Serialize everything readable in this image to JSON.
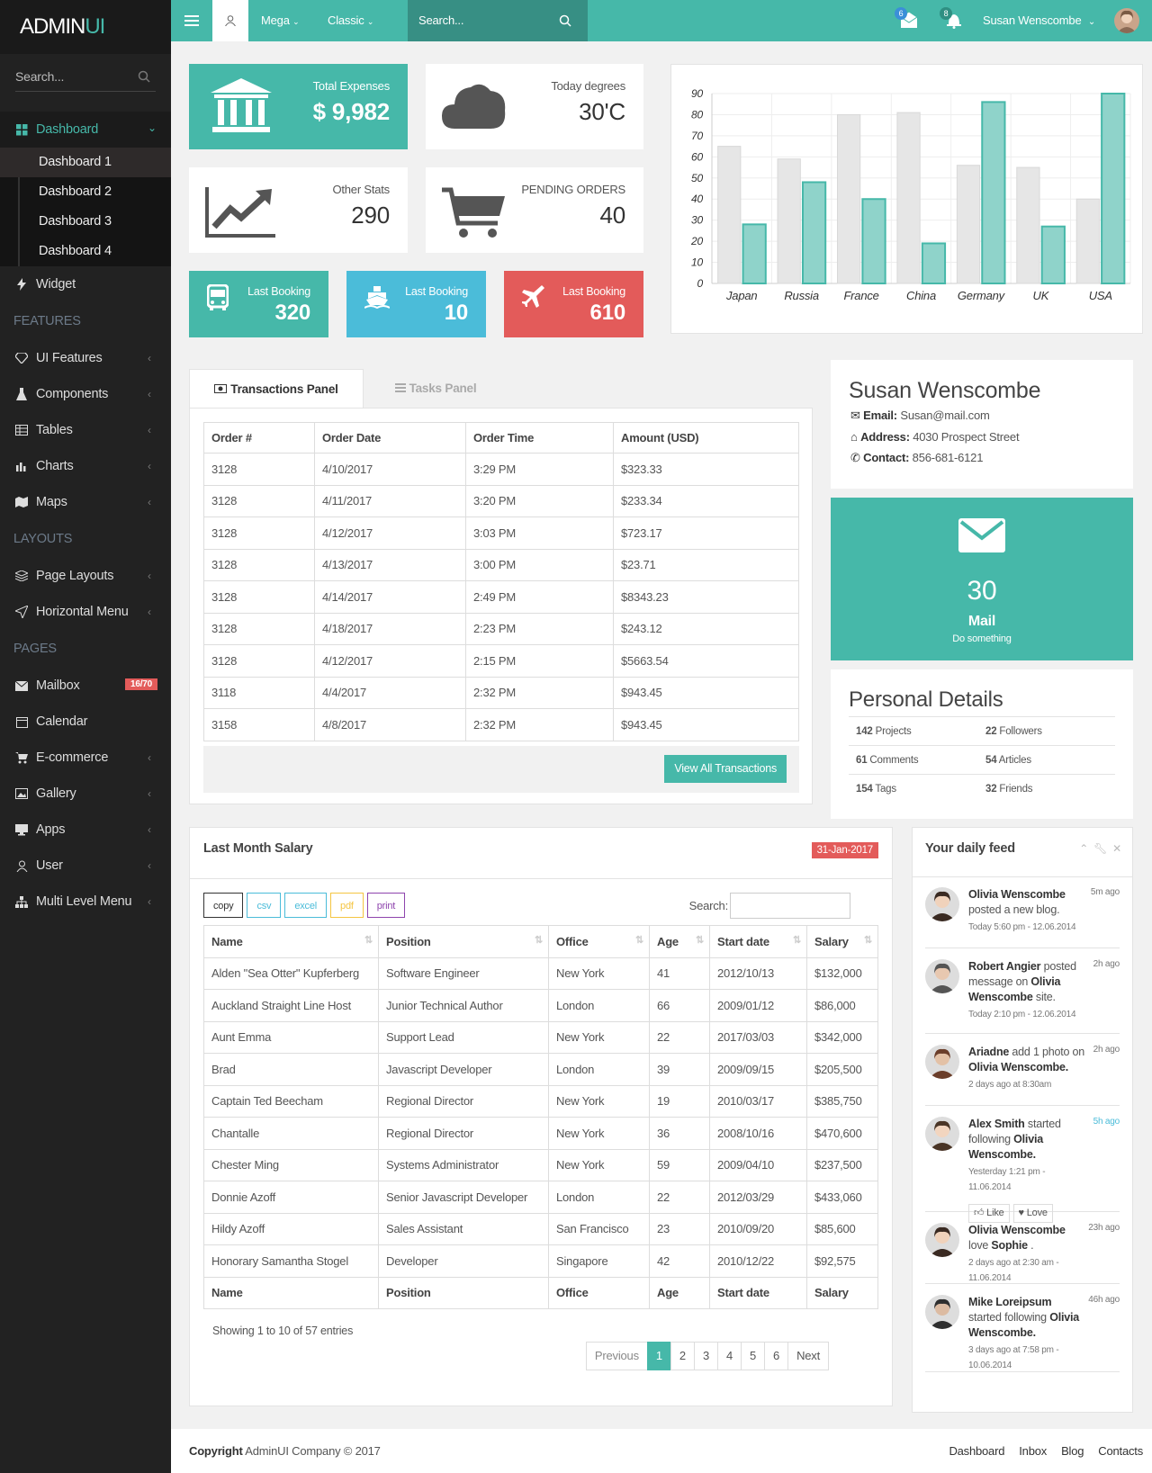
{
  "brand": {
    "part1": "ADMIN",
    "part2": "UI"
  },
  "sidebar": {
    "search_placeholder": "Search...",
    "dashboard": "Dashboard",
    "sub": [
      "Dashboard 1",
      "Dashboard 2",
      "Dashboard 3",
      "Dashboard 4"
    ],
    "widget": "Widget",
    "features_label": "FEATURES",
    "features": [
      "UI Features",
      "Components",
      "Tables",
      "Charts",
      "Maps"
    ],
    "layouts_label": "LAYOUTS",
    "layouts": [
      "Page Layouts",
      "Horizontal Menu"
    ],
    "pages_label": "PAGES",
    "mailbox": "Mailbox",
    "mailbox_badge": "16/70",
    "pages": [
      "Calendar",
      "E-commerce",
      "Gallery",
      "Apps",
      "User",
      "Multi Level Menu"
    ]
  },
  "topbar": {
    "mega": "Mega",
    "classic": "Classic",
    "search_placeholder": "Search...",
    "mail_count": "6",
    "notif_count": "8",
    "user_name": "Susan Wenscombe"
  },
  "stats": {
    "expenses_label": "Total Expenses",
    "expenses_value": "$ 9,982",
    "degrees_label": "Today degrees",
    "degrees_value": "30'C",
    "other_label": "Other Stats",
    "other_value": "290",
    "orders_label": "PENDING ORDERS",
    "orders_value": "40"
  },
  "bookings": [
    {
      "label": "Last Booking",
      "value": "320",
      "icon": "bus-icon",
      "color": "#46b8a9"
    },
    {
      "label": "Last Booking",
      "value": "10",
      "icon": "ship-icon",
      "color": "#4bbcd9"
    },
    {
      "label": "Last Booking",
      "value": "610",
      "icon": "plane-icon",
      "color": "#e35b5a"
    }
  ],
  "chart_data": {
    "type": "bar",
    "categories": [
      "Japan",
      "Russia",
      "France",
      "China",
      "Germany",
      "UK",
      "USA"
    ],
    "series": [
      {
        "values": [
          65,
          59,
          80,
          81,
          56,
          55,
          40
        ],
        "color": "#e6e6e6"
      },
      {
        "values": [
          28,
          48,
          40,
          19,
          86,
          27,
          90
        ],
        "color": "#8fd3ca"
      }
    ],
    "ylim": [
      0,
      90
    ],
    "yticks": [
      0,
      10,
      20,
      30,
      40,
      50,
      60,
      70,
      80,
      90
    ],
    "grid": true
  },
  "tabs": {
    "transactions": "Transactions Panel",
    "tasks": "Tasks Panel"
  },
  "transactions": {
    "headers": [
      "Order #",
      "Order Date",
      "Order Time",
      "Amount (USD)"
    ],
    "rows": [
      [
        "3128",
        "4/10/2017",
        "3:29 PM",
        "$323.33"
      ],
      [
        "3128",
        "4/11/2017",
        "3:20 PM",
        "$233.34"
      ],
      [
        "3128",
        "4/12/2017",
        "3:03 PM",
        "$723.17"
      ],
      [
        "3128",
        "4/13/2017",
        "3:00 PM",
        "$23.71"
      ],
      [
        "3128",
        "4/14/2017",
        "2:49 PM",
        "$8343.23"
      ],
      [
        "3128",
        "4/18/2017",
        "2:23 PM",
        "$243.12"
      ],
      [
        "3128",
        "4/12/2017",
        "2:15 PM",
        "$5663.54"
      ],
      [
        "3118",
        "4/4/2017",
        "2:32 PM",
        "$943.45"
      ],
      [
        "3158",
        "4/8/2017",
        "2:32 PM",
        "$943.45"
      ]
    ],
    "view_all": "View All Transactions"
  },
  "profile": {
    "name": "Susan Wenscombe",
    "email_label": "Email:",
    "email": "Susan@mail.com",
    "address_label": "Address:",
    "address": "4030 Prospect Street",
    "contact_label": "Contact:",
    "contact": "856-681-6121"
  },
  "mail_card": {
    "count": "30",
    "title": "Mail",
    "subtitle": "Do something"
  },
  "personal": {
    "title": "Personal Details",
    "items": [
      {
        "num": "142",
        "label": "Projects"
      },
      {
        "num": "22",
        "label": "Followers"
      },
      {
        "num": "61",
        "label": "Comments"
      },
      {
        "num": "54",
        "label": "Articles"
      },
      {
        "num": "154",
        "label": "Tags"
      },
      {
        "num": "32",
        "label": "Friends"
      }
    ]
  },
  "salary": {
    "title": "Last Month Salary",
    "date_badge": "31-Jan-2017",
    "buttons": [
      "copy",
      "csv",
      "excel",
      "pdf",
      "print"
    ],
    "search_label": "Search:",
    "headers": [
      "Name",
      "Position",
      "Office",
      "Age",
      "Start date",
      "Salary"
    ],
    "rows": [
      [
        "Alden \"Sea Otter\" Kupferberg",
        "Software Engineer",
        "New York",
        "41",
        "2012/10/13",
        "$132,000"
      ],
      [
        "Auckland Straight Line Host",
        "Junior Technical Author",
        "London",
        "66",
        "2009/01/12",
        "$86,000"
      ],
      [
        "Aunt Emma",
        "Support Lead",
        "New York",
        "22",
        "2017/03/03",
        "$342,000"
      ],
      [
        "Brad",
        "Javascript Developer",
        "London",
        "39",
        "2009/09/15",
        "$205,500"
      ],
      [
        "Captain Ted Beecham",
        "Regional Director",
        "New York",
        "19",
        "2010/03/17",
        "$385,750"
      ],
      [
        "Chantalle",
        "Regional Director",
        "New York",
        "36",
        "2008/10/16",
        "$470,600"
      ],
      [
        "Chester Ming",
        "Systems Administrator",
        "New York",
        "59",
        "2009/04/10",
        "$237,500"
      ],
      [
        "Donnie Azoff",
        "Senior Javascript Developer",
        "London",
        "22",
        "2012/03/29",
        "$433,060"
      ],
      [
        "Hildy Azoff",
        "Sales Assistant",
        "San Francisco",
        "23",
        "2010/09/20",
        "$85,600"
      ],
      [
        "Honorary Samantha Stogel",
        "Developer",
        "Singapore",
        "42",
        "2010/12/22",
        "$92,575"
      ]
    ],
    "info": "Showing 1 to 10 of 57 entries",
    "pagination": [
      "Previous",
      "1",
      "2",
      "3",
      "4",
      "5",
      "6",
      "Next"
    ]
  },
  "feed": {
    "title": "Your daily feed",
    "items": [
      {
        "name": "Olivia Wenscombe",
        "text": "posted a new blog.",
        "time": "5m ago",
        "date": "Today 5:60 pm - 12.06.2014"
      },
      {
        "name": "Robert Angier",
        "text": "posted message on",
        "target": "Olivia Wenscombe",
        "tail": "site.",
        "time": "2h ago",
        "date": "Today 2:10 pm - 12.06.2014"
      },
      {
        "name": "Ariadne",
        "text": "add 1 photo on",
        "target": "Olivia Wenscombe.",
        "time": "2h ago",
        "date": "2 days ago at 8:30am"
      },
      {
        "name": "Alex Smith",
        "text": "started following",
        "target": "Olivia Wenscombe.",
        "time": "5h ago",
        "date": "Yesterday 1:21 pm - 11.06.2014",
        "like": "Like",
        "love": "Love"
      },
      {
        "name": "Olivia Wenscombe",
        "text": "love",
        "target": "Sophie",
        "tail": ".",
        "time": "23h ago",
        "date": "2 days ago at 2:30 am - 11.06.2014"
      },
      {
        "name": "Mike Loreipsum",
        "text": "started following",
        "target": "Olivia Wenscombe.",
        "time": "46h ago",
        "date": "3 days ago at 7:58 pm - 10.06.2014"
      }
    ]
  },
  "footer": {
    "copyright_bold": "Copyright",
    "copyright": "AdminUI Company © 2017",
    "links": [
      "Dashboard",
      "Inbox",
      "Blog",
      "Contacts"
    ]
  }
}
